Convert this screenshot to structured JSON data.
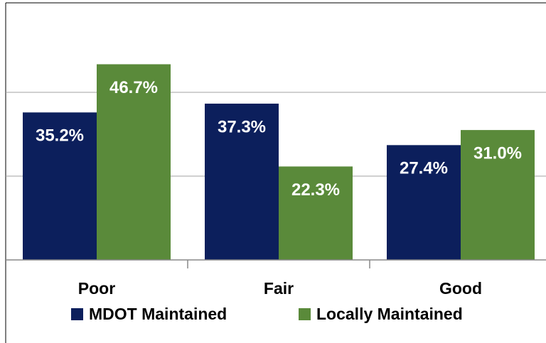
{
  "chart_data": {
    "type": "bar",
    "categories": [
      "Poor",
      "Fair",
      "Good"
    ],
    "series": [
      {
        "name": "MDOT Maintained",
        "color": "#0c1f5c",
        "values": [
          35.2,
          37.3,
          27.4
        ],
        "value_labels": [
          "35.2%",
          "37.3%",
          "27.4%"
        ]
      },
      {
        "name": "Locally Maintained",
        "color": "#5a8a3a",
        "values": [
          46.7,
          22.3,
          31.0
        ],
        "value_labels": [
          "46.7%",
          "22.3%",
          "31.0%"
        ]
      }
    ],
    "ylim": [
      0,
      60
    ],
    "yticks": [
      0,
      20,
      40,
      60
    ],
    "grid": true,
    "legend": "bottom"
  }
}
